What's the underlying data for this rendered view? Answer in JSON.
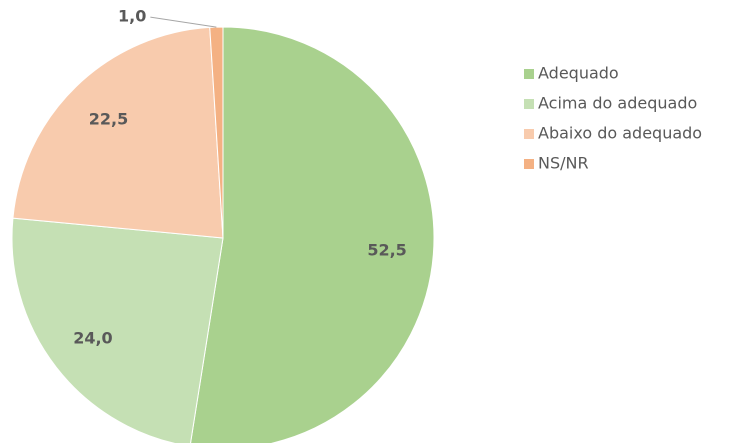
{
  "chart_data": {
    "type": "pie",
    "categories": [
      "Adequado",
      "Acima do adequado",
      "Abaixo do adequado",
      "NS/NR"
    ],
    "values": [
      52.5,
      24.0,
      22.5,
      1.0
    ],
    "value_labels": [
      "52,5",
      "24,0",
      "22,5",
      "1,0"
    ],
    "colors": [
      "#a9d18e",
      "#c5e0b4",
      "#f8cbad",
      "#f4b183"
    ],
    "legend": "right"
  }
}
